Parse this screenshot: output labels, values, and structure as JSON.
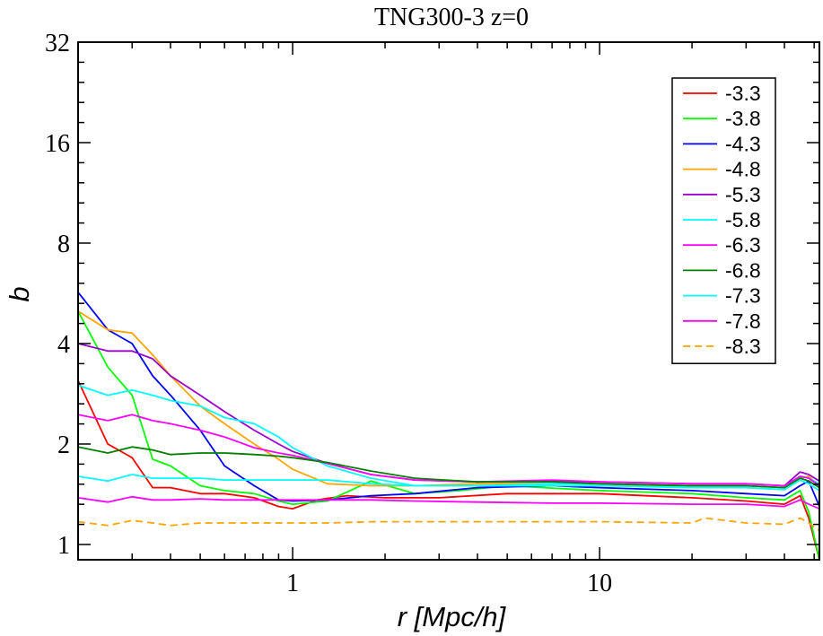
{
  "chart_data": {
    "type": "line",
    "title": "TNG300-3 z=0",
    "xlabel": "r [Mpc/h]",
    "ylabel": "b",
    "xscale": "log",
    "yscale": "log2",
    "xlim": [
      0.2,
      52
    ],
    "ylim": [
      0.9,
      32
    ],
    "xticks": [
      {
        "value": 1,
        "label": "1"
      },
      {
        "value": 10,
        "label": "10"
      }
    ],
    "yticks": [
      {
        "value": 1,
        "label": "1"
      },
      {
        "value": 2,
        "label": "2"
      },
      {
        "value": 4,
        "label": "4"
      },
      {
        "value": 8,
        "label": "8"
      },
      {
        "value": 16,
        "label": "16"
      },
      {
        "value": 32,
        "label": "32"
      }
    ],
    "legend_position": "top-right",
    "series": [
      {
        "name": "-3.3",
        "color": "#ff0000",
        "dashed": false,
        "x": [
          0.2,
          0.25,
          0.3,
          0.35,
          0.4,
          0.5,
          0.6,
          0.75,
          0.9,
          1.0,
          1.2,
          1.5,
          2.0,
          3.0,
          5.0,
          10,
          20,
          30,
          40,
          45,
          48,
          52
        ],
        "y": [
          3.1,
          2.0,
          1.82,
          1.48,
          1.48,
          1.42,
          1.42,
          1.38,
          1.3,
          1.28,
          1.36,
          1.4,
          1.38,
          1.38,
          1.42,
          1.42,
          1.38,
          1.35,
          1.32,
          1.4,
          1.2,
          0.9
        ]
      },
      {
        "name": "-3.8",
        "color": "#00ff00",
        "dashed": false,
        "x": [
          0.2,
          0.25,
          0.3,
          0.35,
          0.4,
          0.5,
          0.6,
          0.75,
          0.9,
          1.0,
          1.3,
          1.8,
          2.5,
          3.5,
          5.0,
          10,
          20,
          30,
          40,
          45,
          48,
          52
        ],
        "y": [
          5.0,
          3.4,
          2.8,
          1.8,
          1.72,
          1.5,
          1.45,
          1.42,
          1.35,
          1.32,
          1.35,
          1.55,
          1.42,
          1.45,
          1.5,
          1.45,
          1.42,
          1.38,
          1.36,
          1.45,
          1.25,
          0.9
        ]
      },
      {
        "name": "-4.3",
        "color": "#0000ff",
        "dashed": false,
        "x": [
          0.2,
          0.25,
          0.3,
          0.35,
          0.4,
          0.5,
          0.6,
          0.75,
          0.9,
          1.0,
          1.3,
          1.8,
          2.5,
          4.0,
          7.0,
          10,
          20,
          30,
          40,
          45,
          48,
          52
        ],
        "y": [
          5.7,
          4.4,
          4.0,
          3.2,
          2.8,
          2.2,
          1.72,
          1.5,
          1.36,
          1.35,
          1.36,
          1.4,
          1.42,
          1.48,
          1.5,
          1.48,
          1.45,
          1.42,
          1.4,
          1.5,
          1.55,
          1.3
        ]
      },
      {
        "name": "-4.8",
        "color": "#ffa500",
        "dashed": false,
        "x": [
          0.2,
          0.25,
          0.3,
          0.35,
          0.4,
          0.5,
          0.6,
          0.75,
          0.9,
          1.0,
          1.3,
          1.8,
          2.5,
          4.0,
          7.0,
          10,
          20,
          30,
          40,
          45,
          48,
          52
        ],
        "y": [
          5.0,
          4.4,
          4.3,
          3.7,
          3.2,
          2.6,
          2.3,
          2.0,
          1.8,
          1.68,
          1.52,
          1.5,
          1.5,
          1.52,
          1.52,
          1.52,
          1.48,
          1.48,
          1.46,
          1.58,
          1.6,
          1.5
        ]
      },
      {
        "name": "-5.3",
        "color": "#9900cc",
        "dashed": false,
        "x": [
          0.2,
          0.25,
          0.3,
          0.35,
          0.4,
          0.5,
          0.6,
          0.75,
          0.9,
          1.0,
          1.3,
          1.8,
          2.5,
          4.0,
          7.0,
          10,
          20,
          30,
          40,
          45,
          48,
          52
        ],
        "y": [
          4.0,
          3.8,
          3.8,
          3.6,
          3.2,
          2.8,
          2.5,
          2.2,
          2.0,
          1.9,
          1.75,
          1.62,
          1.56,
          1.54,
          1.55,
          1.54,
          1.52,
          1.52,
          1.5,
          1.65,
          1.62,
          1.55
        ]
      },
      {
        "name": "-5.8",
        "color": "#00ffff",
        "dashed": false,
        "x": [
          0.2,
          0.25,
          0.3,
          0.35,
          0.4,
          0.5,
          0.6,
          0.75,
          0.9,
          1.0,
          1.3,
          1.8,
          2.5,
          4.0,
          7.0,
          10,
          20,
          30,
          40,
          45,
          48,
          52
        ],
        "y": [
          3.0,
          2.8,
          2.9,
          2.8,
          2.7,
          2.6,
          2.4,
          2.3,
          2.1,
          1.95,
          1.72,
          1.58,
          1.5,
          1.5,
          1.52,
          1.52,
          1.5,
          1.5,
          1.48,
          1.6,
          1.58,
          1.52
        ]
      },
      {
        "name": "-6.3",
        "color": "#ff00ff",
        "dashed": false,
        "x": [
          0.2,
          0.25,
          0.3,
          0.35,
          0.4,
          0.5,
          0.6,
          0.75,
          0.9,
          1.0,
          1.3,
          1.8,
          2.5,
          4.0,
          7.0,
          10,
          20,
          30,
          40,
          45,
          48,
          52
        ],
        "y": [
          2.45,
          2.35,
          2.45,
          2.35,
          2.3,
          2.2,
          2.1,
          1.95,
          1.88,
          1.85,
          1.75,
          1.62,
          1.56,
          1.54,
          1.56,
          1.54,
          1.52,
          1.52,
          1.5,
          1.6,
          1.58,
          1.5
        ]
      },
      {
        "name": "-6.8",
        "color": "#008000",
        "dashed": false,
        "x": [
          0.2,
          0.25,
          0.3,
          0.35,
          0.4,
          0.5,
          0.6,
          0.75,
          0.9,
          1.0,
          1.3,
          1.8,
          2.5,
          4.0,
          7.0,
          10,
          20,
          30,
          40,
          45,
          48,
          52
        ],
        "y": [
          1.96,
          1.88,
          1.96,
          1.92,
          1.86,
          1.88,
          1.88,
          1.86,
          1.84,
          1.82,
          1.76,
          1.66,
          1.58,
          1.54,
          1.54,
          1.52,
          1.5,
          1.5,
          1.48,
          1.58,
          1.55,
          1.48
        ]
      },
      {
        "name": "-7.3",
        "color": "#00ffff",
        "dashed": false,
        "x": [
          0.2,
          0.25,
          0.3,
          0.35,
          0.4,
          0.5,
          0.6,
          0.75,
          0.9,
          1.0,
          1.3,
          1.8,
          2.5,
          4.0,
          7.0,
          10,
          20,
          30,
          40,
          45,
          48,
          52
        ],
        "y": [
          1.6,
          1.55,
          1.62,
          1.58,
          1.58,
          1.58,
          1.56,
          1.56,
          1.56,
          1.56,
          1.56,
          1.52,
          1.5,
          1.5,
          1.5,
          1.5,
          1.48,
          1.48,
          1.46,
          1.56,
          1.52,
          1.45
        ]
      },
      {
        "name": "-7.8",
        "color": "#ff00ff",
        "dashed": false,
        "x": [
          0.2,
          0.25,
          0.3,
          0.35,
          0.4,
          0.5,
          0.6,
          0.75,
          0.9,
          1.0,
          1.3,
          1.8,
          2.5,
          4.0,
          7.0,
          10,
          20,
          30,
          40,
          45,
          48,
          52
        ],
        "y": [
          1.38,
          1.34,
          1.39,
          1.36,
          1.36,
          1.37,
          1.36,
          1.36,
          1.36,
          1.36,
          1.36,
          1.36,
          1.35,
          1.34,
          1.33,
          1.33,
          1.32,
          1.32,
          1.3,
          1.36,
          1.32,
          1.28
        ]
      },
      {
        "name": "-8.3",
        "color": "#ffa500",
        "dashed": true,
        "x": [
          0.2,
          0.25,
          0.3,
          0.35,
          0.4,
          0.5,
          0.6,
          0.75,
          0.9,
          1.0,
          1.3,
          1.8,
          2.5,
          4.0,
          7.0,
          10,
          20,
          22,
          30,
          40,
          45,
          48,
          52
        ],
        "y": [
          1.17,
          1.14,
          1.18,
          1.16,
          1.14,
          1.16,
          1.16,
          1.16,
          1.16,
          1.16,
          1.16,
          1.17,
          1.17,
          1.17,
          1.17,
          1.17,
          1.16,
          1.2,
          1.16,
          1.15,
          1.2,
          1.16,
          1.1
        ]
      }
    ]
  }
}
